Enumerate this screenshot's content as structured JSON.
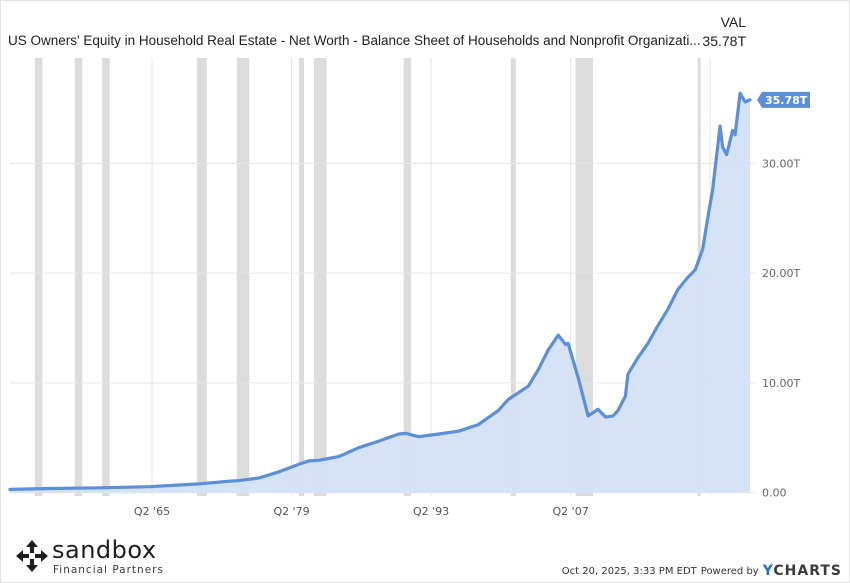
{
  "header": {
    "title": "US Owners' Equity in Household Real Estate - Net Worth - Balance Sheet of Households and Nonprofit Organizati...",
    "val_label": "VAL",
    "val_value": "35.78T"
  },
  "footer": {
    "logo_word": "sandbox",
    "logo_sub": "Financial Partners",
    "date": "Oct 20, 2025, 3:33 PM EDT",
    "powered_by": "Powered by",
    "brand": "CHARTS",
    "brand_y": "Y"
  },
  "colors": {
    "line": "#5b8fd9",
    "area": "#d4e1f5",
    "recession": "#dcdcdc",
    "grid": "#e6e6e6",
    "callout": "#5b8fd9"
  },
  "chart_data": {
    "type": "area",
    "title": "US Owners' Equity in Household Real Estate - Net Worth - Balance Sheet of Households and Nonprofit Organizati...",
    "xlabel": "",
    "ylabel": "",
    "x_tick_labels": [
      {
        "x": 1965.25,
        "label": "Q2 '65"
      },
      {
        "x": 1979.25,
        "label": "Q2 '79"
      },
      {
        "x": 1993.25,
        "label": "Q2 '93"
      },
      {
        "x": 2007.25,
        "label": "Q2 '07"
      }
    ],
    "y_ticks": [
      {
        "value": 0,
        "label": "0.00"
      },
      {
        "value": 10,
        "label": "10.00T"
      },
      {
        "value": 20,
        "label": "20.00T"
      },
      {
        "value": 30,
        "label": "30.00T"
      }
    ],
    "xlim": [
      1951.0,
      2025.75
    ],
    "ylim": [
      -0.3,
      39.6
    ],
    "grid": true,
    "y_axis_side": "right",
    "last_value_label": "35.78T",
    "last_value": 35.78,
    "recessions": [
      [
        1953.5,
        1954.25
      ],
      [
        1957.5,
        1958.25
      ],
      [
        1960.25,
        1961.0
      ],
      [
        1969.75,
        1970.75
      ],
      [
        1973.75,
        1975.0
      ],
      [
        1980.0,
        1980.5
      ],
      [
        1981.5,
        1982.75
      ],
      [
        1990.5,
        1991.25
      ],
      [
        2001.25,
        2001.75
      ],
      [
        2007.75,
        2009.5
      ],
      [
        2020.0,
        2020.25
      ]
    ],
    "series": [
      {
        "points": [
          [
            1951.0,
            0.3
          ],
          [
            1955.0,
            0.38
          ],
          [
            1960.0,
            0.45
          ],
          [
            1965.0,
            0.55
          ],
          [
            1968.0,
            0.7
          ],
          [
            1970.0,
            0.8
          ],
          [
            1973.0,
            1.05
          ],
          [
            1974.0,
            1.1
          ],
          [
            1976.0,
            1.35
          ],
          [
            1978.0,
            1.9
          ],
          [
            1980.0,
            2.6
          ],
          [
            1981.0,
            2.9
          ],
          [
            1982.0,
            2.95
          ],
          [
            1984.0,
            3.3
          ],
          [
            1986.0,
            4.1
          ],
          [
            1988.0,
            4.7
          ],
          [
            1990.0,
            5.35
          ],
          [
            1990.75,
            5.4
          ],
          [
            1992.0,
            5.1
          ],
          [
            1994.0,
            5.35
          ],
          [
            1996.0,
            5.6
          ],
          [
            1998.0,
            6.2
          ],
          [
            2000.0,
            7.5
          ],
          [
            2001.0,
            8.5
          ],
          [
            2002.0,
            9.1
          ],
          [
            2003.0,
            9.7
          ],
          [
            2004.0,
            11.2
          ],
          [
            2005.0,
            13.0
          ],
          [
            2006.0,
            14.35
          ],
          [
            2006.75,
            13.5
          ],
          [
            2007.0,
            13.6
          ],
          [
            2008.0,
            10.5
          ],
          [
            2009.0,
            7.0
          ],
          [
            2010.0,
            7.6
          ],
          [
            2010.75,
            6.9
          ],
          [
            2011.5,
            7.0
          ],
          [
            2012.0,
            7.5
          ],
          [
            2012.75,
            8.8
          ],
          [
            2013.0,
            10.8
          ],
          [
            2014.0,
            12.3
          ],
          [
            2015.0,
            13.6
          ],
          [
            2016.0,
            15.2
          ],
          [
            2017.0,
            16.7
          ],
          [
            2018.0,
            18.5
          ],
          [
            2019.0,
            19.6
          ],
          [
            2019.75,
            20.3
          ],
          [
            2020.5,
            22.2
          ],
          [
            2021.0,
            25.0
          ],
          [
            2021.5,
            27.6
          ],
          [
            2022.25,
            33.4
          ],
          [
            2022.5,
            31.5
          ],
          [
            2022.9,
            30.8
          ],
          [
            2023.5,
            33.0
          ],
          [
            2023.75,
            32.6
          ],
          [
            2024.25,
            36.4
          ],
          [
            2024.75,
            35.6
          ],
          [
            2025.25,
            35.78
          ]
        ]
      }
    ]
  }
}
